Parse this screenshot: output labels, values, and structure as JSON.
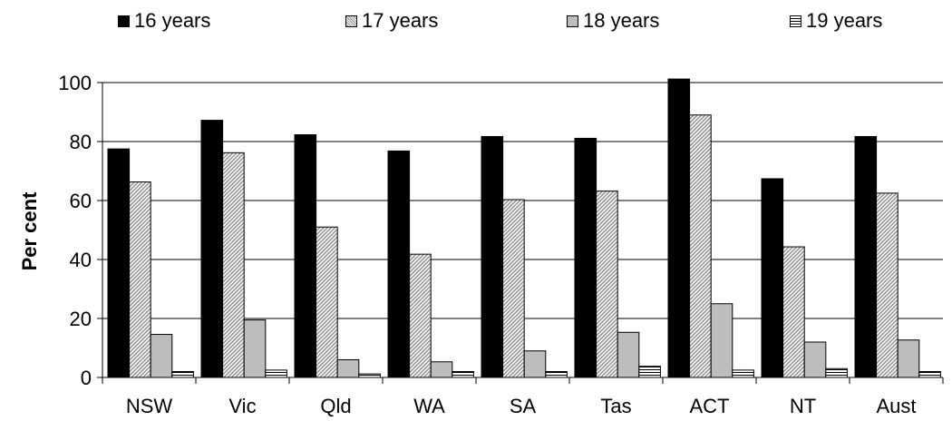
{
  "chart_data": {
    "type": "bar",
    "title": "",
    "xlabel": "",
    "ylabel": "Per cent",
    "ylim": [
      0,
      100
    ],
    "yticks": [
      0,
      20,
      40,
      60,
      80,
      100
    ],
    "grid": "horizontal",
    "legend_position": "top",
    "categories": [
      "NSW",
      "Vic",
      "Qld",
      "WA",
      "SA",
      "Tas",
      "ACT",
      "NT",
      "Aust"
    ],
    "series": [
      {
        "name": "16 years",
        "pattern": "solid",
        "color": "#000000",
        "values": [
          77.5,
          87.2,
          82.3,
          76.8,
          81.7,
          81.1,
          101.2,
          67.4,
          81.7
        ]
      },
      {
        "name": "17 years",
        "pattern": "diagonal",
        "color": "#c8c8c8",
        "values": [
          66.3,
          76.2,
          51.0,
          41.8,
          60.3,
          63.2,
          89.0,
          44.3,
          62.5
        ]
      },
      {
        "name": "18 years",
        "pattern": "light-grey",
        "color": "#bdbdbd",
        "values": [
          14.6,
          19.5,
          6.0,
          5.3,
          9.0,
          15.3,
          25.0,
          12.0,
          12.7
        ]
      },
      {
        "name": "19 years",
        "pattern": "horizontal-lines",
        "color": "#ffffff",
        "values": [
          2.0,
          2.5,
          1.2,
          2.0,
          2.0,
          3.8,
          2.5,
          3.0,
          2.0
        ]
      }
    ]
  }
}
